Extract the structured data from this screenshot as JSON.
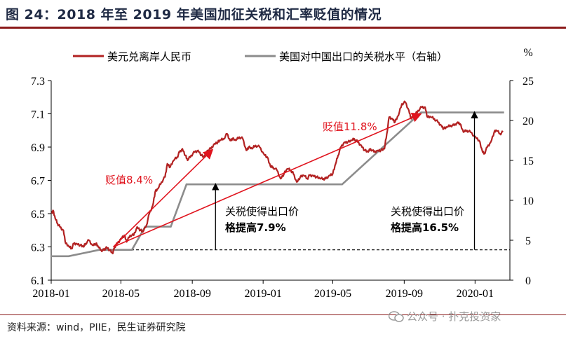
{
  "title": "图 24：2018 年至 2019 年美国加征关税和汇率贬值的情况",
  "source": "资料来源：wind，PIIE，民生证券研究院",
  "watermark": "公众号 · 扑克投资家",
  "chart_data": {
    "type": "line",
    "x_ticks": [
      "2018-01",
      "2018-05",
      "2018-09",
      "2019-01",
      "2019-05",
      "2019-09",
      "2020-01"
    ],
    "y_left_ticks": [
      "6.1",
      "6.3",
      "6.5",
      "6.7",
      "6.9",
      "7.1",
      "7.3"
    ],
    "y_left_range": [
      6.1,
      7.3
    ],
    "y_right_label": "%",
    "y_right_ticks": [
      "0",
      "5",
      "10",
      "15",
      "20",
      "25"
    ],
    "y_right_range": [
      0,
      25
    ],
    "colors": {
      "fx": "#b22222",
      "tariff": "#8c8c8c",
      "arrow": "#e0141e",
      "text_red": "#e0141e"
    },
    "series": [
      {
        "name": "美元兑离岸人民币",
        "axis": "left",
        "points": [
          [
            "2018-01-02",
            6.5
          ],
          [
            "2018-01-04",
            6.52
          ],
          [
            "2018-01-08",
            6.47
          ],
          [
            "2018-01-12",
            6.44
          ],
          [
            "2018-01-16",
            6.42
          ],
          [
            "2018-01-22",
            6.4
          ],
          [
            "2018-01-26",
            6.32
          ],
          [
            "2018-02-01",
            6.3
          ],
          [
            "2018-02-05",
            6.29
          ],
          [
            "2018-02-09",
            6.32
          ],
          [
            "2018-02-14",
            6.32
          ],
          [
            "2018-02-20",
            6.31
          ],
          [
            "2018-02-26",
            6.3
          ],
          [
            "2018-03-01",
            6.32
          ],
          [
            "2018-03-07",
            6.34
          ],
          [
            "2018-03-13",
            6.31
          ],
          [
            "2018-03-19",
            6.32
          ],
          [
            "2018-03-23",
            6.3
          ],
          [
            "2018-03-28",
            6.28
          ],
          [
            "2018-04-02",
            6.28
          ],
          [
            "2018-04-06",
            6.3
          ],
          [
            "2018-04-12",
            6.28
          ],
          [
            "2018-04-17",
            6.26
          ],
          [
            "2018-04-20",
            6.3
          ],
          [
            "2018-04-25",
            6.32
          ],
          [
            "2018-05-01",
            6.35
          ],
          [
            "2018-05-07",
            6.37
          ],
          [
            "2018-05-11",
            6.33
          ],
          [
            "2018-05-17",
            6.37
          ],
          [
            "2018-05-23",
            6.37
          ],
          [
            "2018-05-29",
            6.42
          ],
          [
            "2018-06-04",
            6.4
          ],
          [
            "2018-06-08",
            6.39
          ],
          [
            "2018-06-14",
            6.43
          ],
          [
            "2018-06-19",
            6.5
          ],
          [
            "2018-06-25",
            6.55
          ],
          [
            "2018-06-29",
            6.63
          ],
          [
            "2018-07-04",
            6.65
          ],
          [
            "2018-07-10",
            6.69
          ],
          [
            "2018-07-16",
            6.72
          ],
          [
            "2018-07-20",
            6.8
          ],
          [
            "2018-07-25",
            6.78
          ],
          [
            "2018-07-31",
            6.82
          ],
          [
            "2018-08-06",
            6.84
          ],
          [
            "2018-08-10",
            6.87
          ],
          [
            "2018-08-15",
            6.89
          ],
          [
            "2018-08-20",
            6.85
          ],
          [
            "2018-08-24",
            6.82
          ],
          [
            "2018-08-30",
            6.85
          ],
          [
            "2018-09-05",
            6.87
          ],
          [
            "2018-09-11",
            6.88
          ],
          [
            "2018-09-17",
            6.85
          ],
          [
            "2018-09-21",
            6.84
          ],
          [
            "2018-09-27",
            6.88
          ],
          [
            "2018-10-03",
            6.89
          ],
          [
            "2018-10-09",
            6.92
          ],
          [
            "2018-10-15",
            6.93
          ],
          [
            "2018-10-19",
            6.94
          ],
          [
            "2018-10-25",
            6.95
          ],
          [
            "2018-10-31",
            6.98
          ],
          [
            "2018-11-05",
            6.94
          ],
          [
            "2018-11-09",
            6.95
          ],
          [
            "2018-11-15",
            6.94
          ],
          [
            "2018-11-21",
            6.96
          ],
          [
            "2018-11-27",
            6.95
          ],
          [
            "2018-12-03",
            6.88
          ],
          [
            "2018-12-07",
            6.9
          ],
          [
            "2018-12-13",
            6.89
          ],
          [
            "2018-12-19",
            6.91
          ],
          [
            "2018-12-26",
            6.9
          ],
          [
            "2019-01-02",
            6.86
          ],
          [
            "2019-01-08",
            6.84
          ],
          [
            "2019-01-14",
            6.78
          ],
          [
            "2019-01-18",
            6.78
          ],
          [
            "2019-01-25",
            6.76
          ],
          [
            "2019-01-31",
            6.71
          ],
          [
            "2019-02-06",
            6.74
          ],
          [
            "2019-02-12",
            6.77
          ],
          [
            "2019-02-18",
            6.76
          ],
          [
            "2019-02-22",
            6.74
          ],
          [
            "2019-02-28",
            6.69
          ],
          [
            "2019-03-06",
            6.72
          ],
          [
            "2019-03-12",
            6.73
          ],
          [
            "2019-03-18",
            6.71
          ],
          [
            "2019-03-22",
            6.73
          ],
          [
            "2019-03-28",
            6.73
          ],
          [
            "2019-04-03",
            6.72
          ],
          [
            "2019-04-09",
            6.71
          ],
          [
            "2019-04-15",
            6.71
          ],
          [
            "2019-04-19",
            6.71
          ],
          [
            "2019-04-25",
            6.73
          ],
          [
            "2019-05-01",
            6.74
          ],
          [
            "2019-05-06",
            6.8
          ],
          [
            "2019-05-10",
            6.85
          ],
          [
            "2019-05-15",
            6.9
          ],
          [
            "2019-05-21",
            6.93
          ],
          [
            "2019-05-27",
            6.93
          ],
          [
            "2019-06-03",
            6.94
          ],
          [
            "2019-06-07",
            6.95
          ],
          [
            "2019-06-13",
            6.93
          ],
          [
            "2019-06-19",
            6.91
          ],
          [
            "2019-06-25",
            6.88
          ],
          [
            "2019-07-01",
            6.87
          ],
          [
            "2019-07-05",
            6.89
          ],
          [
            "2019-07-11",
            6.87
          ],
          [
            "2019-07-17",
            6.88
          ],
          [
            "2019-07-23",
            6.88
          ],
          [
            "2019-07-29",
            6.89
          ],
          [
            "2019-08-02",
            6.98
          ],
          [
            "2019-08-06",
            7.08
          ],
          [
            "2019-08-12",
            7.07
          ],
          [
            "2019-08-16",
            7.05
          ],
          [
            "2019-08-22",
            7.09
          ],
          [
            "2019-08-28",
            7.16
          ],
          [
            "2019-09-03",
            7.17
          ],
          [
            "2019-09-09",
            7.12
          ],
          [
            "2019-09-13",
            7.07
          ],
          [
            "2019-09-19",
            7.09
          ],
          [
            "2019-09-25",
            7.12
          ],
          [
            "2019-10-01",
            7.14
          ],
          [
            "2019-10-07",
            7.14
          ],
          [
            "2019-10-11",
            7.08
          ],
          [
            "2019-10-17",
            7.08
          ],
          [
            "2019-10-23",
            7.07
          ],
          [
            "2019-10-29",
            7.05
          ],
          [
            "2019-11-04",
            7.03
          ],
          [
            "2019-11-08",
            7.01
          ],
          [
            "2019-11-14",
            7.02
          ],
          [
            "2019-11-20",
            7.03
          ],
          [
            "2019-11-26",
            7.03
          ],
          [
            "2019-12-02",
            7.05
          ],
          [
            "2019-12-06",
            7.04
          ],
          [
            "2019-12-12",
            6.99
          ],
          [
            "2019-12-18",
            7.0
          ],
          [
            "2019-12-24",
            6.99
          ],
          [
            "2020-01-02",
            6.96
          ],
          [
            "2020-01-08",
            6.94
          ],
          [
            "2020-01-14",
            6.87
          ],
          [
            "2020-01-17",
            6.86
          ],
          [
            "2020-01-22",
            6.9
          ],
          [
            "2020-01-28",
            6.93
          ],
          [
            "2020-02-03",
            6.99
          ],
          [
            "2020-02-07",
            7.0
          ],
          [
            "2020-02-13",
            6.98
          ],
          [
            "2020-02-18",
            6.99
          ]
        ]
      },
      {
        "name": "美国对中国出口的关税水平（右轴）",
        "axis": "right",
        "points": [
          [
            "2018-01-01",
            3.0
          ],
          [
            "2018-01-31",
            3.0
          ],
          [
            "2018-03-25",
            3.8
          ],
          [
            "2018-04-10",
            3.8
          ],
          [
            "2018-05-20",
            3.8
          ],
          [
            "2018-06-12",
            6.7
          ],
          [
            "2018-07-26",
            6.7
          ],
          [
            "2018-08-22",
            12.0
          ],
          [
            "2019-05-17",
            12.0
          ],
          [
            "2019-09-30",
            21.0
          ],
          [
            "2020-02-20",
            21.0
          ]
        ]
      }
    ],
    "annotations": {
      "depreciation_1": "贬值8.4%",
      "depreciation_2": "贬值11.8%",
      "tariff_note_1_line1": "关税使得出口价",
      "tariff_note_1_line2": "格提高7.9%",
      "tariff_note_2_line1": "关税使得出口价",
      "tariff_note_2_line2": "格提高16.5%",
      "baseline_right_value": 3.8
    }
  }
}
